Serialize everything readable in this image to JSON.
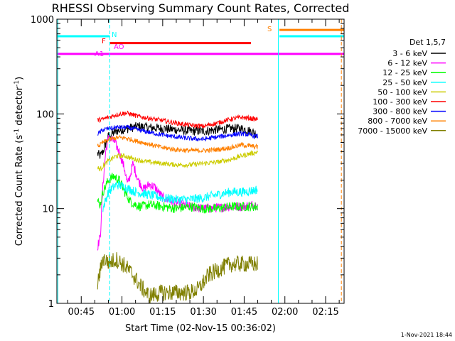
{
  "chart_data": {
    "type": "line",
    "title": "RHESSI Observing Summary Count Rates, Corrected",
    "xlabel": "Start Time (02-Nov-15 00:36:02)",
    "ylabel_main": "Corrected Count Rate (s",
    "ylabel_sup1": "-1",
    "ylabel_mid": " detector",
    "ylabel_sup2": "-1",
    "ylabel_end": ")",
    "y_scale": "log",
    "ylim": [
      1,
      1000
    ],
    "y_ticks": [
      {
        "v": 1,
        "label": "1"
      },
      {
        "v": 10,
        "label": "10"
      },
      {
        "v": 100,
        "label": "100"
      },
      {
        "v": 1000,
        "label": "1000"
      }
    ],
    "xlim_min": [
      36.03,
      141.8
    ],
    "x_ticks": [
      {
        "m": 45,
        "label": "00:45"
      },
      {
        "m": 60,
        "label": "01:00"
      },
      {
        "m": 75,
        "label": "01:15"
      },
      {
        "m": 90,
        "label": "01:30"
      },
      {
        "m": 105,
        "label": "01:45"
      },
      {
        "m": 120,
        "label": "02:00"
      },
      {
        "m": 135,
        "label": "02:15"
      }
    ],
    "legend_title": "Det 1,5,7",
    "legend_position": "right, outside plot",
    "series": [
      {
        "name": "3 - 6 keV",
        "color": "#000000",
        "points": [
          [
            51,
            38
          ],
          [
            52,
            36
          ],
          [
            53,
            40
          ],
          [
            55,
            58
          ],
          [
            58,
            66
          ],
          [
            62,
            70
          ],
          [
            66,
            74
          ],
          [
            70,
            72
          ],
          [
            75,
            70
          ],
          [
            80,
            68
          ],
          [
            85,
            66
          ],
          [
            90,
            66
          ],
          [
            95,
            68
          ],
          [
            100,
            70
          ],
          [
            104,
            70
          ],
          [
            107,
            66
          ],
          [
            109,
            63
          ],
          [
            110,
            62
          ]
        ]
      },
      {
        "name": "6 - 12 keV",
        "color": "#ff00ff",
        "points": [
          [
            51,
            4
          ],
          [
            52,
            5
          ],
          [
            53,
            18
          ],
          [
            54,
            40
          ],
          [
            55,
            55
          ],
          [
            57,
            52
          ],
          [
            59,
            40
          ],
          [
            61,
            26
          ],
          [
            62,
            18
          ],
          [
            63,
            22
          ],
          [
            64,
            30
          ],
          [
            66,
            20
          ],
          [
            68,
            16
          ],
          [
            70,
            18
          ],
          [
            72,
            17
          ],
          [
            75,
            13
          ],
          [
            80,
            11.5
          ],
          [
            85,
            10.5
          ],
          [
            90,
            10
          ],
          [
            95,
            10.2
          ],
          [
            100,
            10.5
          ],
          [
            105,
            10.5
          ],
          [
            108,
            11
          ],
          [
            110,
            11
          ]
        ]
      },
      {
        "name": "12 - 25 keV",
        "color": "#00ff00",
        "points": [
          [
            51,
            12
          ],
          [
            52,
            11
          ],
          [
            53,
            15
          ],
          [
            55,
            20
          ],
          [
            57,
            22
          ],
          [
            59,
            20
          ],
          [
            61,
            15
          ],
          [
            63,
            12
          ],
          [
            65,
            11
          ],
          [
            67,
            10.5
          ],
          [
            70,
            11
          ],
          [
            75,
            10.5
          ],
          [
            80,
            10
          ],
          [
            85,
            10.5
          ],
          [
            90,
            10
          ],
          [
            95,
            10
          ],
          [
            100,
            10.5
          ],
          [
            105,
            10.5
          ],
          [
            108,
            10.5
          ],
          [
            110,
            10.5
          ]
        ]
      },
      {
        "name": "25 - 50 keV",
        "color": "#00ffff",
        "points": [
          [
            53,
            10
          ],
          [
            55,
            15
          ],
          [
            58,
            18
          ],
          [
            61,
            17
          ],
          [
            65,
            15
          ],
          [
            70,
            14
          ],
          [
            75,
            13
          ],
          [
            80,
            12.5
          ],
          [
            85,
            12.5
          ],
          [
            90,
            13
          ],
          [
            95,
            14
          ],
          [
            100,
            15
          ],
          [
            105,
            15
          ],
          [
            108,
            15.5
          ],
          [
            110,
            16
          ]
        ]
      },
      {
        "name": "50 - 100 keV",
        "color": "#cccc00",
        "points": [
          [
            51,
            27
          ],
          [
            52,
            26
          ],
          [
            53,
            28
          ],
          [
            55,
            32
          ],
          [
            58,
            36
          ],
          [
            61,
            36
          ],
          [
            65,
            33
          ],
          [
            70,
            31
          ],
          [
            75,
            30
          ],
          [
            80,
            29
          ],
          [
            85,
            29
          ],
          [
            90,
            30
          ],
          [
            95,
            31
          ],
          [
            100,
            33
          ],
          [
            104,
            36
          ],
          [
            107,
            38
          ],
          [
            109,
            39
          ],
          [
            110,
            40
          ]
        ]
      },
      {
        "name": "100 - 300 keV",
        "color": "#ff0000",
        "points": [
          [
            51,
            86
          ],
          [
            53,
            88
          ],
          [
            55,
            92
          ],
          [
            58,
            98
          ],
          [
            61,
            102
          ],
          [
            63,
            100
          ],
          [
            66,
            94
          ],
          [
            70,
            90
          ],
          [
            75,
            85
          ],
          [
            80,
            80
          ],
          [
            85,
            76
          ],
          [
            90,
            74
          ],
          [
            95,
            80
          ],
          [
            100,
            88
          ],
          [
            104,
            92
          ],
          [
            107,
            90
          ],
          [
            109,
            88
          ],
          [
            110,
            88
          ]
        ]
      },
      {
        "name": "300 - 800 keV",
        "color": "#0000ff",
        "points": [
          [
            51,
            62
          ],
          [
            52,
            64
          ],
          [
            53,
            68
          ],
          [
            55,
            70
          ],
          [
            58,
            72
          ],
          [
            62,
            72
          ],
          [
            66,
            68
          ],
          [
            70,
            64
          ],
          [
            75,
            60
          ],
          [
            80,
            57
          ],
          [
            85,
            55
          ],
          [
            90,
            54
          ],
          [
            95,
            57
          ],
          [
            100,
            60
          ],
          [
            104,
            62
          ],
          [
            107,
            60
          ],
          [
            109,
            58
          ],
          [
            110,
            58
          ]
        ]
      },
      {
        "name": "800 - 7000 keV",
        "color": "#ff8000",
        "points": [
          [
            51,
            46
          ],
          [
            52,
            47
          ],
          [
            53,
            50
          ],
          [
            55,
            53
          ],
          [
            58,
            56
          ],
          [
            61,
            56
          ],
          [
            65,
            52
          ],
          [
            70,
            48
          ],
          [
            75,
            44
          ],
          [
            80,
            42
          ],
          [
            85,
            41
          ],
          [
            90,
            41
          ],
          [
            95,
            42
          ],
          [
            100,
            44
          ],
          [
            104,
            47
          ],
          [
            107,
            46
          ],
          [
            109,
            45
          ],
          [
            110,
            45
          ]
        ]
      },
      {
        "name": "7000 - 15000 keV",
        "color": "#808000",
        "points": [
          [
            51,
            1.6
          ],
          [
            52,
            2.2
          ],
          [
            53,
            3.0
          ],
          [
            55,
            2.7
          ],
          [
            58,
            2.9
          ],
          [
            61,
            2.5
          ],
          [
            64,
            2.0
          ],
          [
            67,
            1.5
          ],
          [
            70,
            1.2
          ],
          [
            75,
            1.3
          ],
          [
            80,
            1.3
          ],
          [
            85,
            1.3
          ],
          [
            88,
            1.4
          ],
          [
            92,
            2.0
          ],
          [
            96,
            2.3
          ],
          [
            100,
            2.6
          ],
          [
            104,
            2.6
          ],
          [
            107,
            2.6
          ],
          [
            110,
            2.6
          ]
        ]
      }
    ],
    "flags": [
      {
        "label": "N",
        "color": "#00ffff",
        "value": 660,
        "segments": [
          [
            36.03,
            55.5
          ],
          [
            118,
            141.8
          ]
        ]
      },
      {
        "label": "F",
        "color": "#ff0000",
        "value": 560,
        "segments": [
          [
            55.5,
            107.5
          ]
        ]
      },
      {
        "label": "A1",
        "color": "#ff00ff",
        "value": 430,
        "segments": [
          [
            36.03,
            141.8
          ]
        ]
      },
      {
        "label": "AO",
        "color": "#ff00ff",
        "value": 430,
        "segments": []
      },
      {
        "label": "S",
        "color": "#ff8000",
        "value": 770,
        "segments": [
          [
            118,
            141.8
          ]
        ]
      }
    ],
    "vertical_lines": [
      {
        "x": 36.4,
        "color": "#00ffff",
        "style": "solid"
      },
      {
        "x": 55.5,
        "color": "#00ffff",
        "style": "dashed"
      },
      {
        "x": 117.6,
        "color": "#00ffff",
        "style": "solid"
      },
      {
        "x": 140.8,
        "color": "#ff8000",
        "style": "dashed"
      }
    ],
    "grid": false
  },
  "footer_date": "1-Nov-2021 18:44"
}
